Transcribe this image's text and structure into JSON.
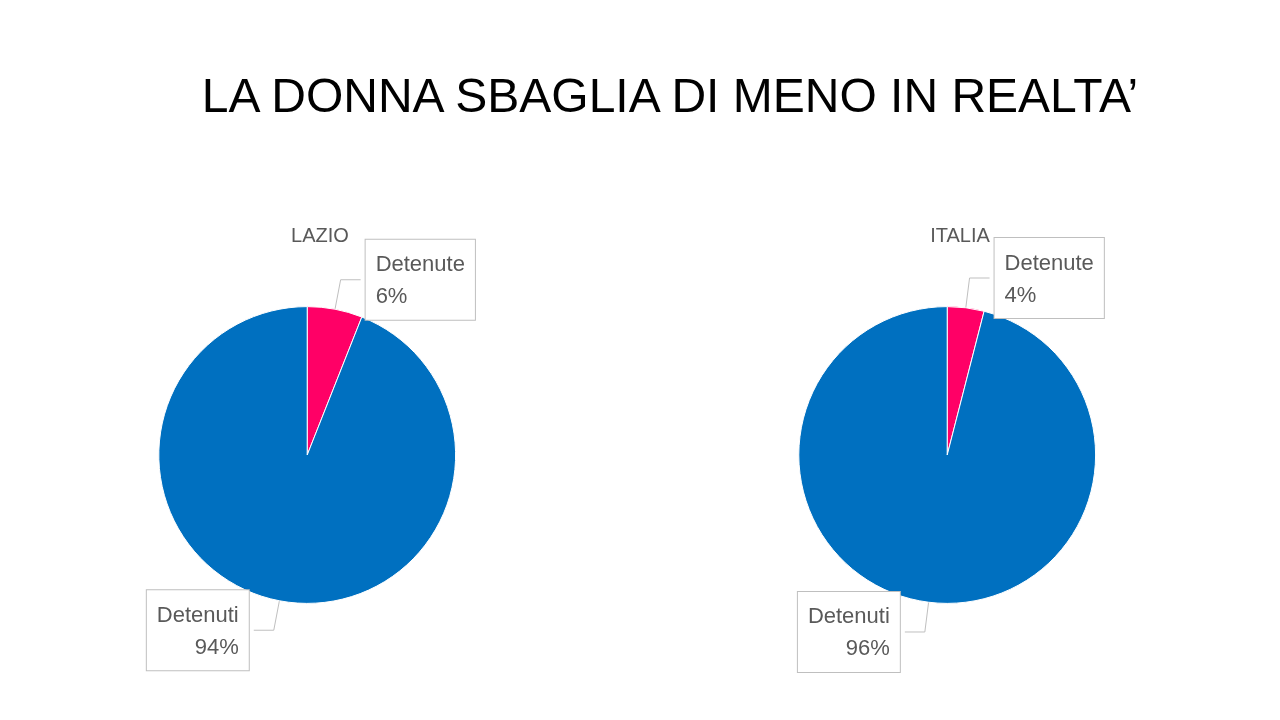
{
  "chart_data": [
    {
      "type": "pie",
      "title": "LAZIO",
      "annotations": [
        "LA DONNA SBAGLIA DI MENO IN REALTA’"
      ],
      "categories": [
        "Detenute",
        "Detenuti"
      ],
      "values": [
        6,
        94
      ],
      "value_labels": [
        "6%",
        "94%"
      ],
      "colors": [
        "#ff0066",
        "#0070c0"
      ],
      "legend": false
    },
    {
      "type": "pie",
      "title": "ITALIA",
      "categories": [
        "Detenute",
        "Detenuti"
      ],
      "values": [
        4,
        96
      ],
      "value_labels": [
        "4%",
        "96%"
      ],
      "colors": [
        "#ff0066",
        "#0070c0"
      ],
      "legend": false
    }
  ]
}
